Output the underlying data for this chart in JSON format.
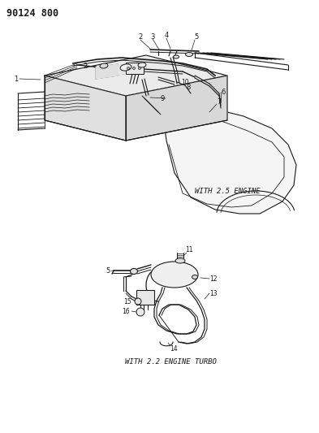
{
  "title_code": "90124 800",
  "bg_color": "#ffffff",
  "line_color": "#1a1a1a",
  "caption1": "WITH 2.5 ENGINE",
  "caption2": "WITH 2.2 ENGINE TURBO",
  "fig_width": 3.93,
  "fig_height": 5.33,
  "dpi": 100
}
